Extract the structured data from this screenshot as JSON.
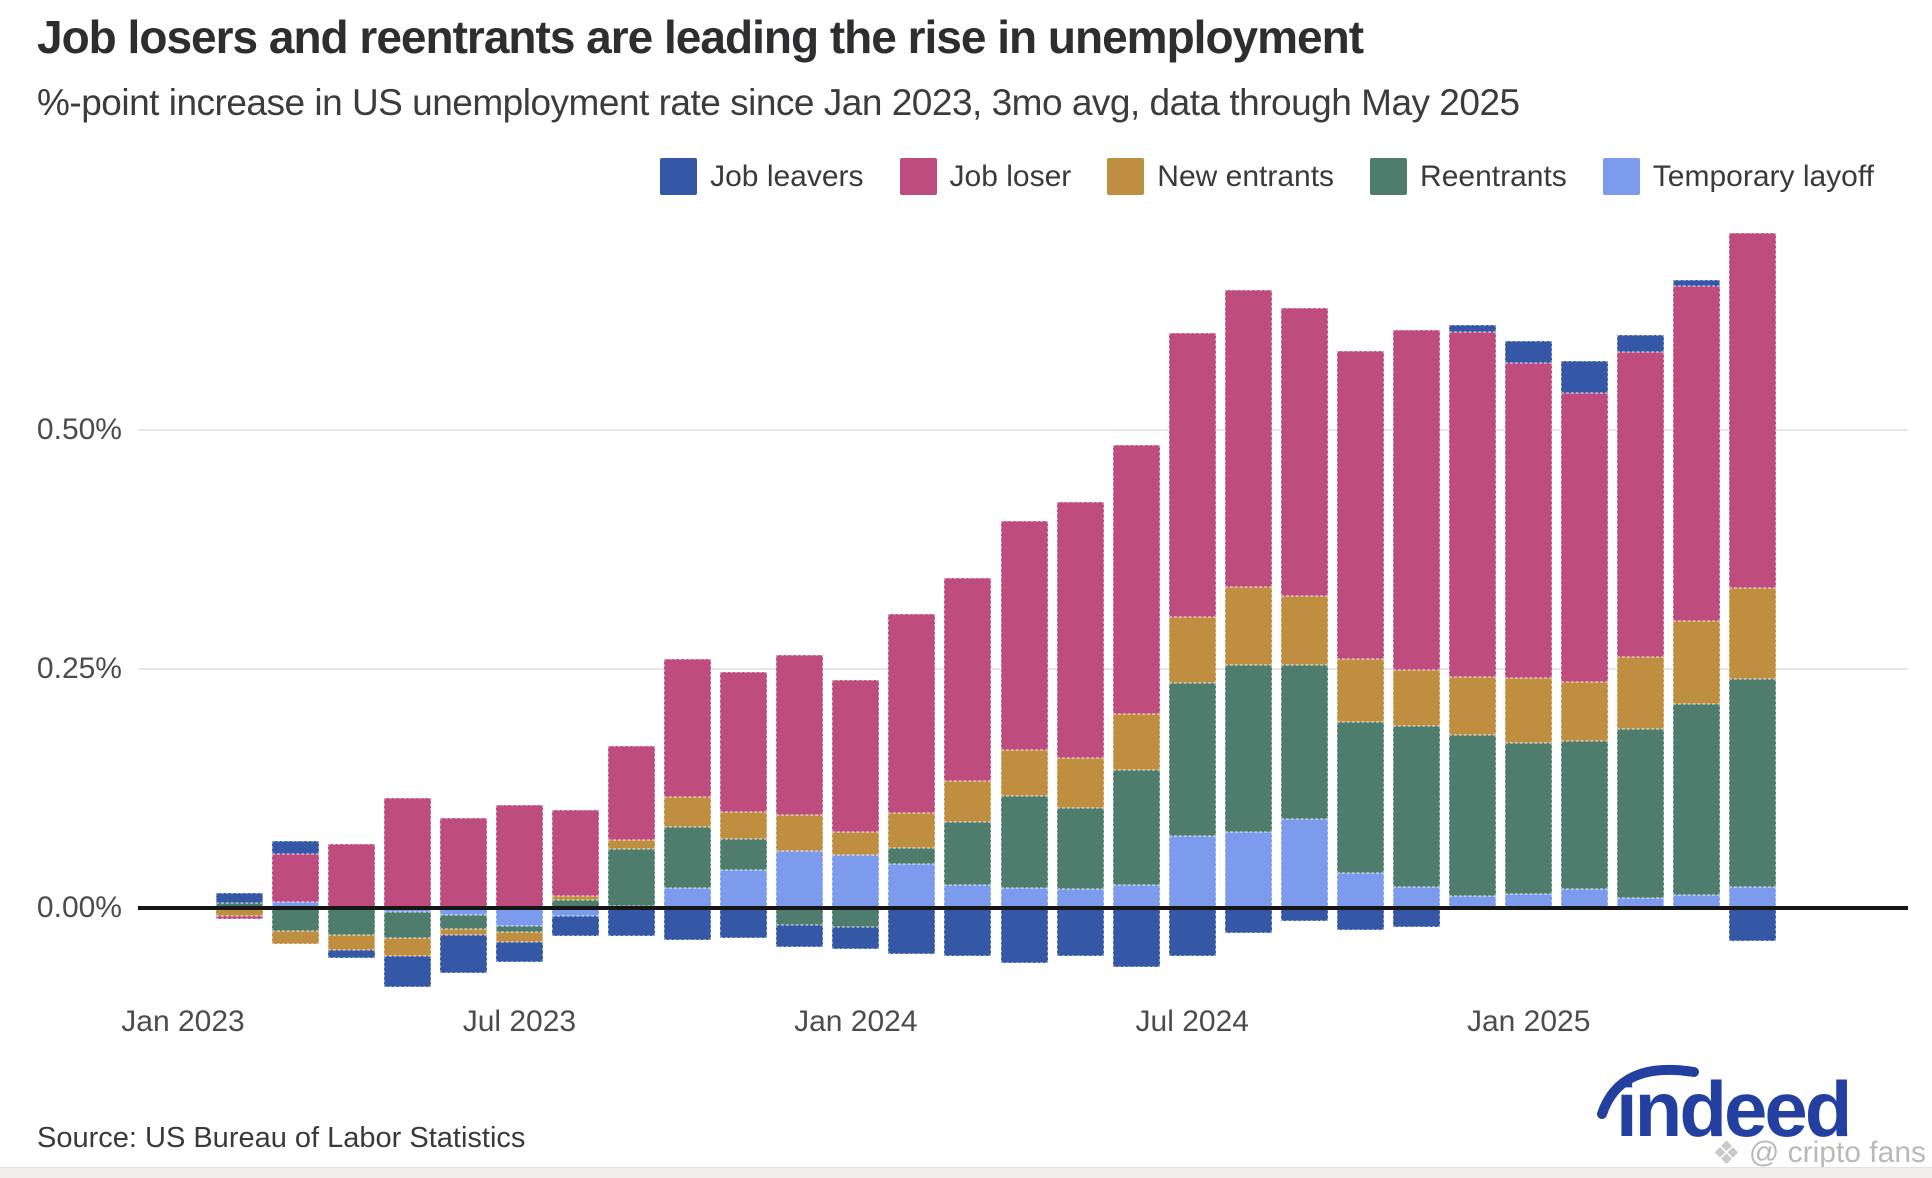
{
  "header": {
    "title": "Job losers and reentrants are leading the rise in unemployment",
    "subtitle": "%-point increase in US unemployment rate since Jan 2023, 3mo avg, data through May 2025"
  },
  "legend": {
    "items": [
      {
        "label": "Job leavers",
        "color": "#3457a6"
      },
      {
        "label": "Job loser",
        "color": "#bf4c7f"
      },
      {
        "label": "New entrants",
        "color": "#bf8e40"
      },
      {
        "label": "Reentrants",
        "color": "#4e7d6e"
      },
      {
        "label": "Temporary layoff",
        "color": "#7d9bec"
      }
    ]
  },
  "chart_data": {
    "type": "bar",
    "stacked": true,
    "title": "Job losers and reentrants are leading the rise in unemployment",
    "ylabel": "%-point increase in US unemployment rate since Jan 2023",
    "ylim": [
      -0.09,
      0.75
    ],
    "grid": true,
    "legend_position": "top-right",
    "stack_order_from_zero": [
      "Temporary layoff",
      "Reentrants",
      "New entrants",
      "Job loser",
      "Job leavers"
    ],
    "categories": [
      "Jan 2023",
      "Feb 2023",
      "Mar 2023",
      "Apr 2023",
      "May 2023",
      "Jun 2023",
      "Jul 2023",
      "Aug 2023",
      "Sep 2023",
      "Oct 2023",
      "Nov 2023",
      "Dec 2023",
      "Jan 2024",
      "Feb 2024",
      "Mar 2024",
      "Apr 2024",
      "May 2024",
      "Jun 2024",
      "Jul 2024",
      "Aug 2024",
      "Sep 2024",
      "Oct 2024",
      "Nov 2024",
      "Dec 2024",
      "Jan 2025",
      "Feb 2025",
      "Mar 2025",
      "Apr 2025",
      "May 2025"
    ],
    "series": [
      {
        "name": "Job leavers",
        "color": "#3457a6",
        "values": [
          0,
          0.011,
          0.013,
          -0.008,
          -0.033,
          -0.04,
          -0.021,
          -0.021,
          -0.029,
          -0.033,
          -0.031,
          -0.023,
          -0.023,
          -0.048,
          -0.05,
          -0.058,
          -0.05,
          -0.062,
          -0.05,
          -0.026,
          -0.014,
          -0.023,
          -0.02,
          0.007,
          0.023,
          0.033,
          0.017,
          0.006,
          -0.035
        ]
      },
      {
        "name": "Job loser",
        "color": "#bf4c7f",
        "values": [
          0,
          -0.003,
          0.051,
          0.067,
          0.115,
          0.094,
          0.108,
          0.089,
          0.098,
          0.144,
          0.147,
          0.168,
          0.16,
          0.209,
          0.212,
          0.24,
          0.268,
          0.281,
          0.297,
          0.31,
          0.302,
          0.323,
          0.356,
          0.361,
          0.329,
          0.303,
          0.319,
          0.351,
          0.371
        ]
      },
      {
        "name": "New entrants",
        "color": "#bf8e40",
        "values": [
          0,
          -0.008,
          -0.014,
          -0.016,
          -0.019,
          -0.006,
          -0.011,
          0.005,
          0.009,
          0.031,
          0.028,
          0.037,
          0.024,
          0.036,
          0.043,
          0.048,
          0.052,
          0.059,
          0.069,
          0.082,
          0.072,
          0.065,
          0.059,
          0.061,
          0.068,
          0.061,
          0.076,
          0.087,
          0.095
        ]
      },
      {
        "name": "Reentrants",
        "color": "#4e7d6e",
        "values": [
          0,
          0.004,
          -0.024,
          -0.028,
          -0.027,
          -0.015,
          -0.006,
          0.008,
          0.06,
          0.064,
          0.032,
          -0.018,
          -0.02,
          0.017,
          0.066,
          0.096,
          0.085,
          0.12,
          0.16,
          0.174,
          0.161,
          0.158,
          0.168,
          0.168,
          0.158,
          0.155,
          0.177,
          0.199,
          0.218
        ]
      },
      {
        "name": "Temporary layoff",
        "color": "#7d9bec",
        "values": [
          0,
          0.001,
          0.006,
          0.0,
          -0.004,
          -0.007,
          -0.019,
          -0.008,
          0.002,
          0.021,
          0.04,
          0.06,
          0.055,
          0.046,
          0.024,
          0.021,
          0.02,
          0.024,
          0.075,
          0.08,
          0.093,
          0.037,
          0.022,
          0.013,
          0.015,
          0.02,
          0.01,
          0.014,
          0.022
        ]
      }
    ],
    "y_ticks": [
      {
        "label": "0.00%",
        "value": 0.0
      },
      {
        "label": "0.25%",
        "value": 0.25
      },
      {
        "label": "0.50%",
        "value": 0.5
      }
    ],
    "x_ticks": [
      {
        "month_index": 0,
        "label": "Jan 2023"
      },
      {
        "month_index": 6,
        "label": "Jul 2023"
      },
      {
        "month_index": 12,
        "label": "Jan 2024"
      },
      {
        "month_index": 18,
        "label": "Jul 2024"
      },
      {
        "month_index": 24,
        "label": "Jan 2025"
      }
    ]
  },
  "footer": {
    "source": "Source: US Bureau of Labor Statistics",
    "logo_text": "indeed",
    "watermark": "@ cripto fans",
    "watermark_icon": "❖"
  }
}
